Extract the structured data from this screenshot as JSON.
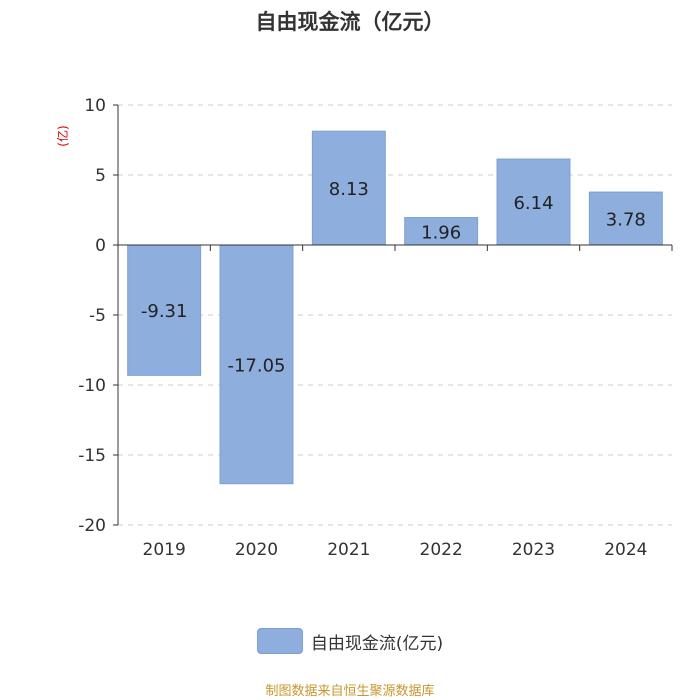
{
  "chart_data": {
    "type": "bar",
    "title": "自由现金流（亿元）",
    "ylabel": "(亿)",
    "xlabel": "",
    "categories": [
      "2019",
      "2020",
      "2021",
      "2022",
      "2023",
      "2024"
    ],
    "series": [
      {
        "name": "自由现金流(亿元)",
        "values": [
          -9.31,
          -17.05,
          8.13,
          1.96,
          6.14,
          3.78
        ]
      }
    ],
    "data_labels": [
      "-9.31",
      "-17.05",
      "8.13",
      "1.96",
      "6.14",
      "3.78"
    ],
    "ylim": [
      -20,
      10
    ],
    "yticks": [
      10,
      5,
      0,
      -5,
      -10,
      -15,
      -20
    ],
    "ytick_labels": [
      "10",
      "5",
      "0",
      "-5",
      "-10",
      "-15",
      "-20"
    ],
    "grid": true,
    "legend_position": "bottom-center",
    "colors": {
      "bar": "#8eaedd",
      "bar_stroke": "#7d9fd2",
      "ylabel": "#dd0000",
      "source": "#c8962e",
      "grid": "#cccccc",
      "axis": "#333333"
    }
  },
  "source_text": "制图数据来自恒生聚源数据库"
}
